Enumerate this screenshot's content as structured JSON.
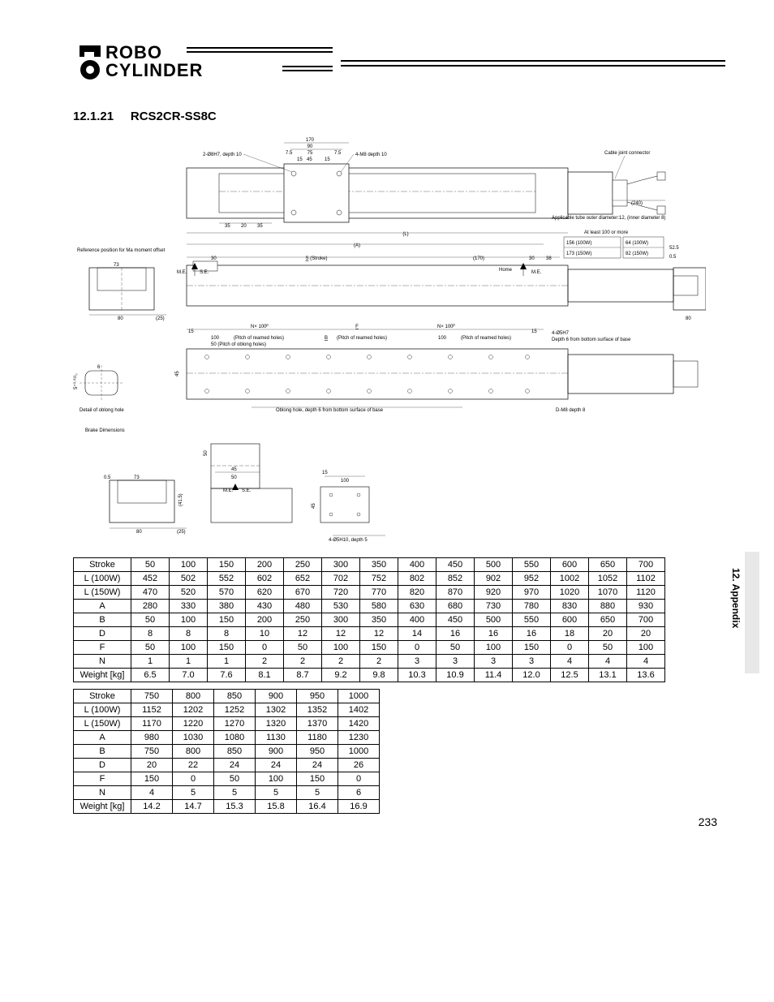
{
  "logo": {
    "line1": "ROBO",
    "line2": "CYLINDER"
  },
  "section": {
    "number": "12.1.21",
    "title": "RCS2CR-SS8C"
  },
  "side": {
    "label": "12. Appendix"
  },
  "page_number": "233",
  "diagram": {
    "labels": {
      "hole_top_left": "2-Ø8H7, depth 10",
      "m8_depth": "4-M8 depth 10",
      "cable_joint": "Cable joint connector",
      "tube": "Applicable tube outer diameter:12, (inner diameter 8)",
      "at_least": "At least 100 or more",
      "right_box_1": "156 (100W)",
      "right_box_2": "173 (150W)",
      "right_box_3": "64 (100W)",
      "right_box_4": "82 (150W)",
      "ref_pos": "Reference position for Ma moment offset",
      "stroke": "(Stroke)",
      "home": "Home",
      "me": "M.E.",
      "se": "S.E.",
      "nx100": "N× 100ᴾ",
      "pitch": "(Pitch of reamed holes)",
      "h7": "4-Ø5H7",
      "h7_depth": "Depth 6 from bottom surface of base",
      "oblong": "Oblong hole, depth 6 from bottom surface of base",
      "dm8": "D-M8 depth 8",
      "detail_oblong": "Detail of oblong hole",
      "brake": "Brake Dimensions",
      "h10": "4-Ø5H10, depth 5",
      "d240": "(240)",
      "d170_top": "170",
      "d90": "90",
      "d75": "75",
      "d7_5": "7.5",
      "d15": "15",
      "d45": "45",
      "d35": "35",
      "d20": "20",
      "d30": "30",
      "d73": "73",
      "d80": "80",
      "d25": "(25)",
      "dL": "(L)",
      "dA": "(A)",
      "dS": "S",
      "d170": "(170)",
      "d38": "38",
      "d52_5": "52.5",
      "d0_5": "0.5",
      "dB": "B",
      "dF": "F",
      "d100": "100",
      "d50_pitch": "50 (Pitch of oblong holes)",
      "d6": "6",
      "d50": "50",
      "d41_5": "(41.5)",
      "d5plus": "5⁺⁰·⁰¹²₀"
    }
  },
  "table1": {
    "rows": [
      {
        "label": "Stroke",
        "v": [
          "50",
          "100",
          "150",
          "200",
          "250",
          "300",
          "350",
          "400",
          "450",
          "500",
          "550",
          "600",
          "650",
          "700"
        ]
      },
      {
        "label": "L (100W)",
        "v": [
          "452",
          "502",
          "552",
          "602",
          "652",
          "702",
          "752",
          "802",
          "852",
          "902",
          "952",
          "1002",
          "1052",
          "1102"
        ]
      },
      {
        "label": "L (150W)",
        "v": [
          "470",
          "520",
          "570",
          "620",
          "670",
          "720",
          "770",
          "820",
          "870",
          "920",
          "970",
          "1020",
          "1070",
          "1120"
        ]
      },
      {
        "label": "A",
        "v": [
          "280",
          "330",
          "380",
          "430",
          "480",
          "530",
          "580",
          "630",
          "680",
          "730",
          "780",
          "830",
          "880",
          "930"
        ]
      },
      {
        "label": "B",
        "v": [
          "50",
          "100",
          "150",
          "200",
          "250",
          "300",
          "350",
          "400",
          "450",
          "500",
          "550",
          "600",
          "650",
          "700"
        ]
      },
      {
        "label": "D",
        "v": [
          "8",
          "8",
          "8",
          "10",
          "12",
          "12",
          "12",
          "14",
          "16",
          "16",
          "16",
          "18",
          "20",
          "20"
        ]
      },
      {
        "label": "F",
        "v": [
          "50",
          "100",
          "150",
          "0",
          "50",
          "100",
          "150",
          "0",
          "50",
          "100",
          "150",
          "0",
          "50",
          "100"
        ]
      },
      {
        "label": "N",
        "v": [
          "1",
          "1",
          "1",
          "2",
          "2",
          "2",
          "2",
          "3",
          "3",
          "3",
          "3",
          "4",
          "4",
          "4"
        ]
      },
      {
        "label": "Weight [kg]",
        "v": [
          "6.5",
          "7.0",
          "7.6",
          "8.1",
          "8.7",
          "9.2",
          "9.8",
          "10.3",
          "10.9",
          "11.4",
          "12.0",
          "12.5",
          "13.1",
          "13.6"
        ]
      }
    ]
  },
  "table2": {
    "rows": [
      {
        "label": "Stroke",
        "v": [
          "750",
          "800",
          "850",
          "900",
          "950",
          "1000"
        ]
      },
      {
        "label": "L (100W)",
        "v": [
          "1152",
          "1202",
          "1252",
          "1302",
          "1352",
          "1402"
        ]
      },
      {
        "label": "L (150W)",
        "v": [
          "1170",
          "1220",
          "1270",
          "1320",
          "1370",
          "1420"
        ]
      },
      {
        "label": "A",
        "v": [
          "980",
          "1030",
          "1080",
          "1130",
          "1180",
          "1230"
        ]
      },
      {
        "label": "B",
        "v": [
          "750",
          "800",
          "850",
          "900",
          "950",
          "1000"
        ]
      },
      {
        "label": "D",
        "v": [
          "20",
          "22",
          "24",
          "24",
          "24",
          "26"
        ]
      },
      {
        "label": "F",
        "v": [
          "150",
          "0",
          "50",
          "100",
          "150",
          "0"
        ]
      },
      {
        "label": "N",
        "v": [
          "4",
          "5",
          "5",
          "5",
          "5",
          "6"
        ]
      },
      {
        "label": "Weight [kg]",
        "v": [
          "14.2",
          "14.7",
          "15.3",
          "15.8",
          "16.4",
          "16.9"
        ]
      }
    ]
  }
}
